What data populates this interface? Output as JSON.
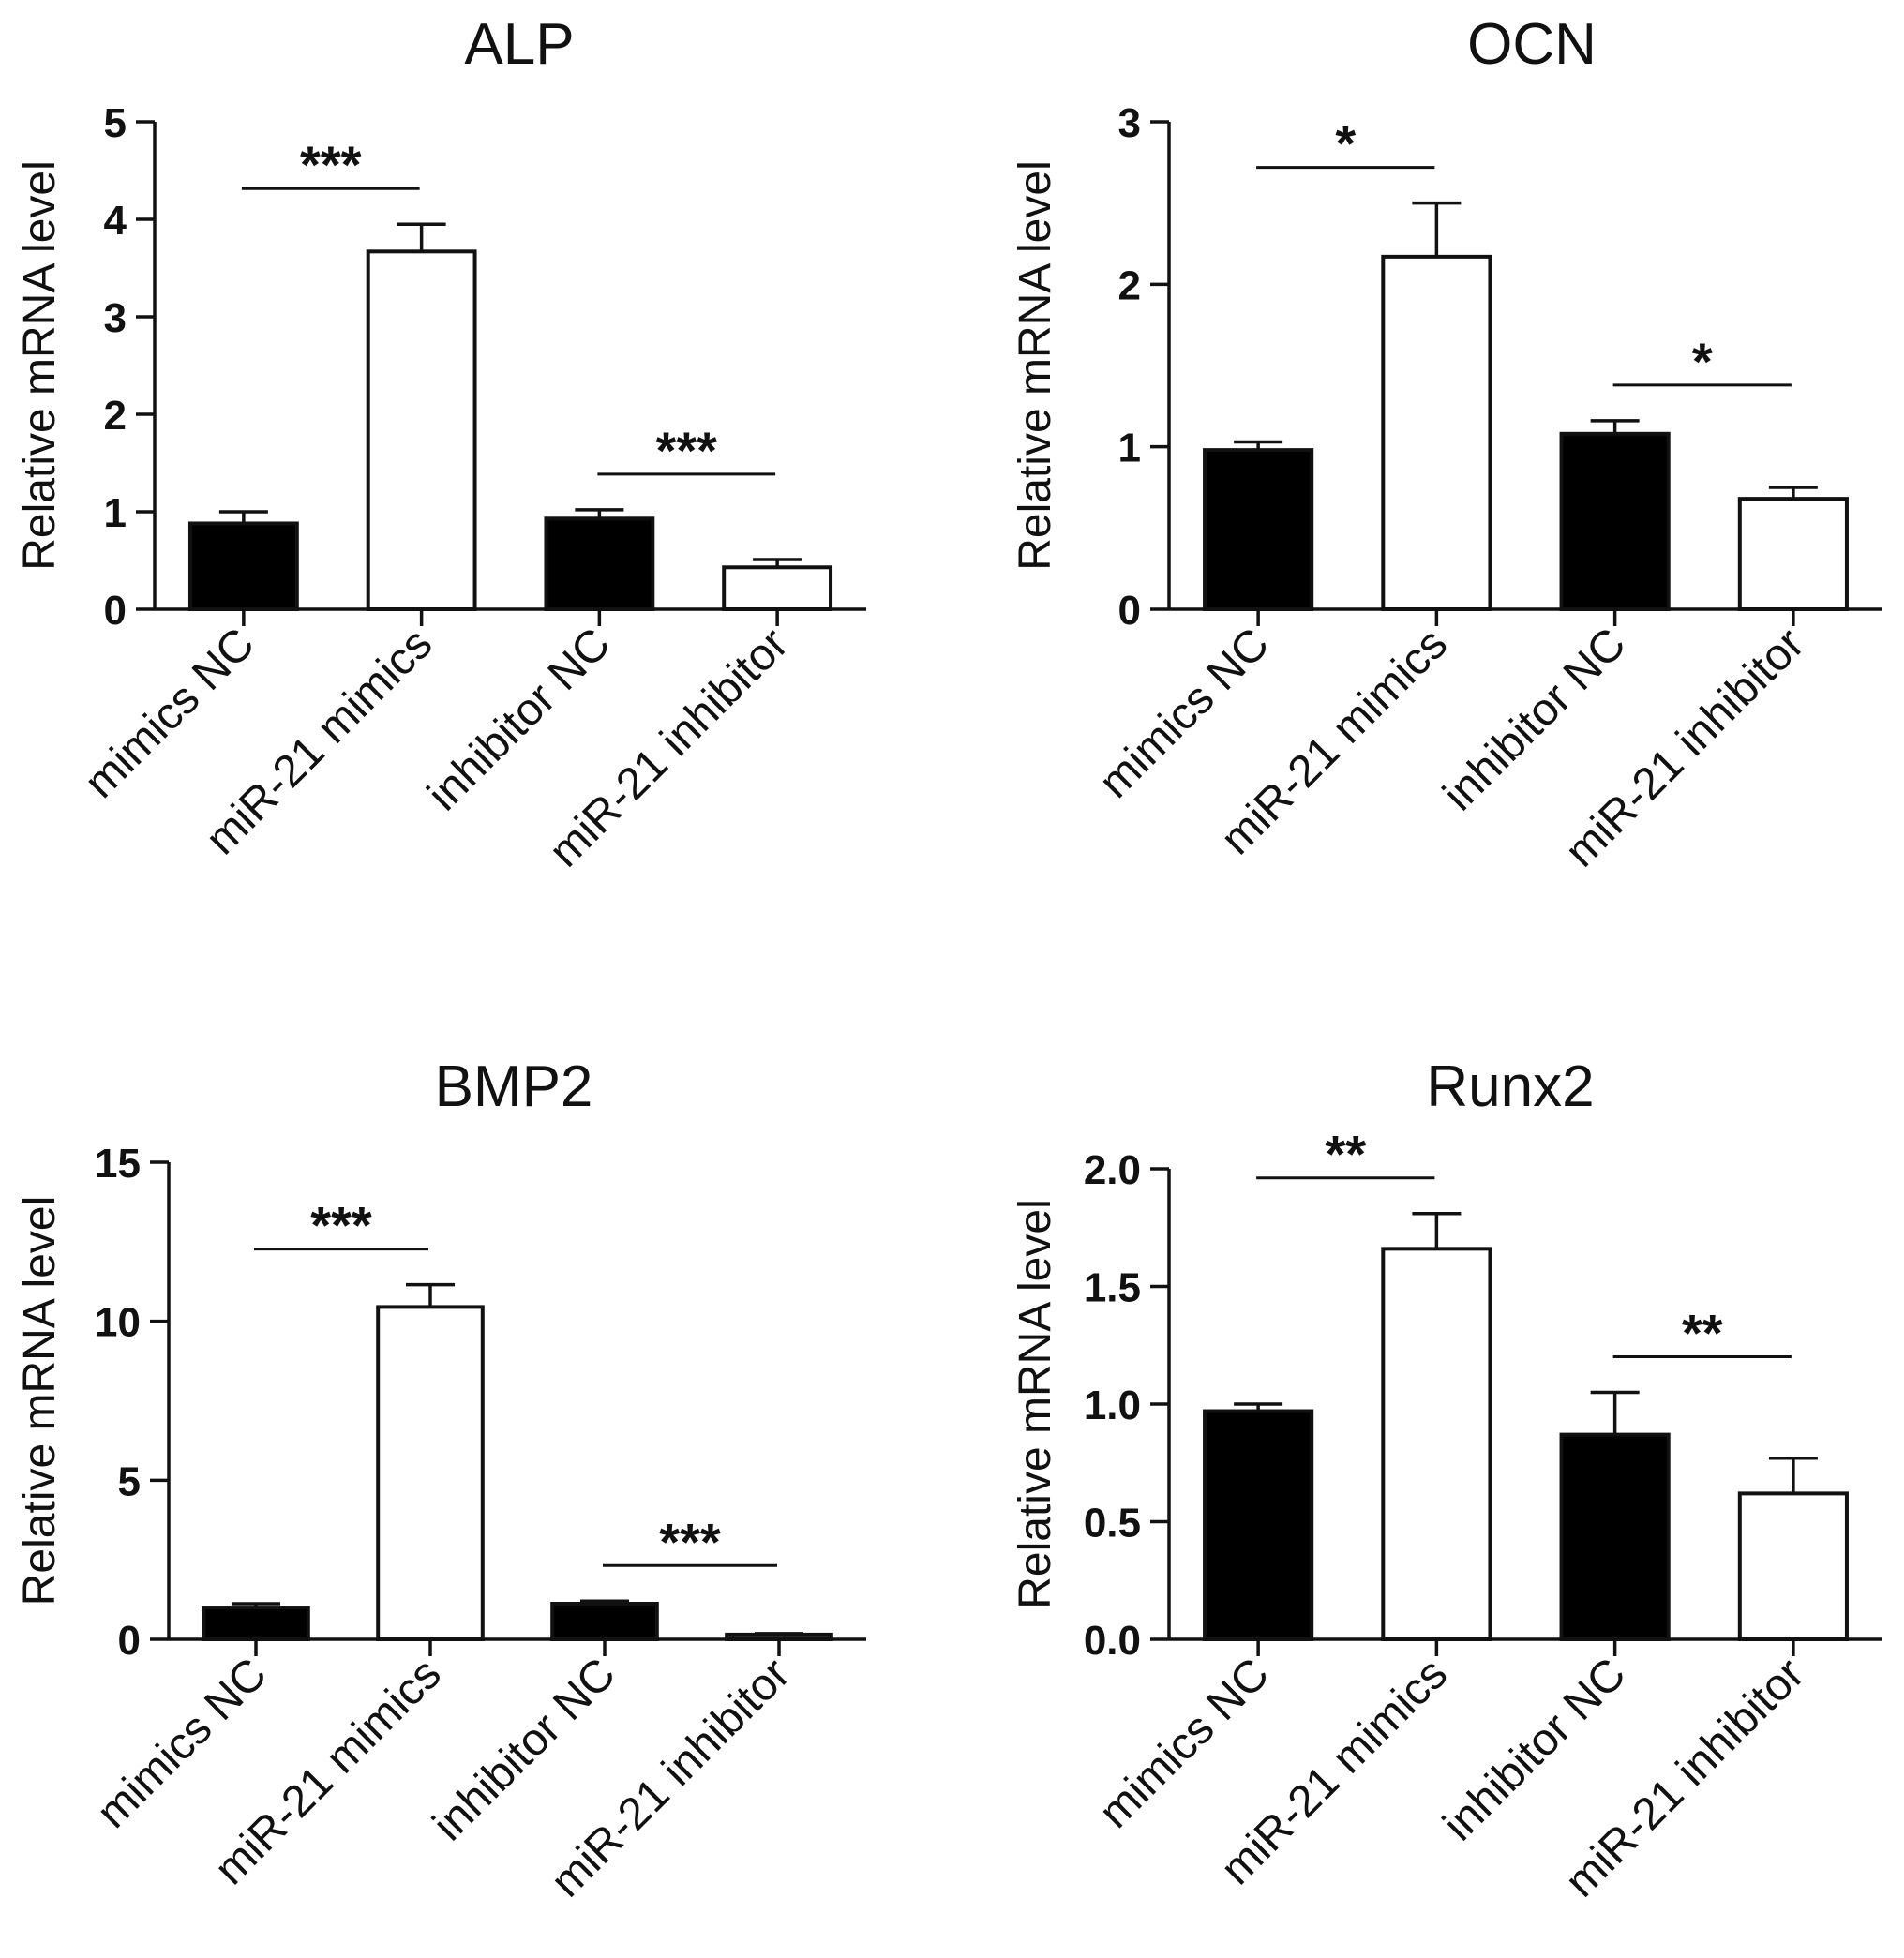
{
  "chart_data": [
    {
      "type": "bar",
      "title": "ALP",
      "ylabel": "Relative mRNA level",
      "categories": [
        "mimics NC",
        "miR-21 mimics",
        "inhibitor NC",
        "miR-21 inhibitor"
      ],
      "values": [
        0.88,
        3.67,
        0.93,
        0.43
      ],
      "errors": [
        0.12,
        0.28,
        0.09,
        0.08
      ],
      "bar_fill": [
        "#000000",
        "#ffffff",
        "#000000",
        "#ffffff"
      ],
      "ylim": [
        0,
        5
      ],
      "yticks": [
        "0",
        "1",
        "2",
        "3",
        "4",
        "5"
      ],
      "significance": [
        {
          "from": 0,
          "to": 1,
          "label": "***"
        },
        {
          "from": 2,
          "to": 3,
          "label": "***"
        }
      ]
    },
    {
      "type": "bar",
      "title": "OCN",
      "ylabel": "Relative mRNA level",
      "categories": [
        "mimics NC",
        "miR-21 mimics",
        "inhibitor NC",
        "miR-21 inhibitor"
      ],
      "values": [
        0.98,
        2.17,
        1.08,
        0.68
      ],
      "errors": [
        0.05,
        0.33,
        0.08,
        0.07
      ],
      "bar_fill": [
        "#000000",
        "#ffffff",
        "#000000",
        "#ffffff"
      ],
      "ylim": [
        0,
        3
      ],
      "yticks": [
        "0",
        "1",
        "2",
        "3"
      ],
      "significance": [
        {
          "from": 0,
          "to": 1,
          "label": "*"
        },
        {
          "from": 2,
          "to": 3,
          "label": "*"
        }
      ]
    },
    {
      "type": "bar",
      "title": "BMP2",
      "ylabel": "Relative mRNA level",
      "categories": [
        "mimics NC",
        "miR-21 mimics",
        "inhibitor NC",
        "miR-21 inhibitor"
      ],
      "values": [
        1.0,
        10.45,
        1.12,
        0.15
      ],
      "errors": [
        0.12,
        0.7,
        0.08,
        0.03
      ],
      "bar_fill": [
        "#000000",
        "#ffffff",
        "#000000",
        "#ffffff"
      ],
      "ylim": [
        0,
        15
      ],
      "yticks": [
        "0",
        "5",
        "10",
        "15"
      ],
      "significance": [
        {
          "from": 0,
          "to": 1,
          "label": "***"
        },
        {
          "from": 2,
          "to": 3,
          "label": "***"
        }
      ]
    },
    {
      "type": "bar",
      "title": "Runx2",
      "ylabel": "Relative mRNA level",
      "categories": [
        "mimics NC",
        "miR-21 mimics",
        "inhibitor NC",
        "miR-21 inhibitor"
      ],
      "values": [
        0.97,
        1.66,
        0.87,
        0.62
      ],
      "errors": [
        0.03,
        0.15,
        0.18,
        0.15
      ],
      "bar_fill": [
        "#000000",
        "#ffffff",
        "#000000",
        "#ffffff"
      ],
      "ylim": [
        0,
        2
      ],
      "yticks": [
        "0.0",
        "0.5",
        "1.0",
        "1.5",
        "2.0"
      ],
      "significance": [
        {
          "from": 0,
          "to": 1,
          "label": "**"
        },
        {
          "from": 2,
          "to": 3,
          "label": "**"
        }
      ]
    }
  ]
}
